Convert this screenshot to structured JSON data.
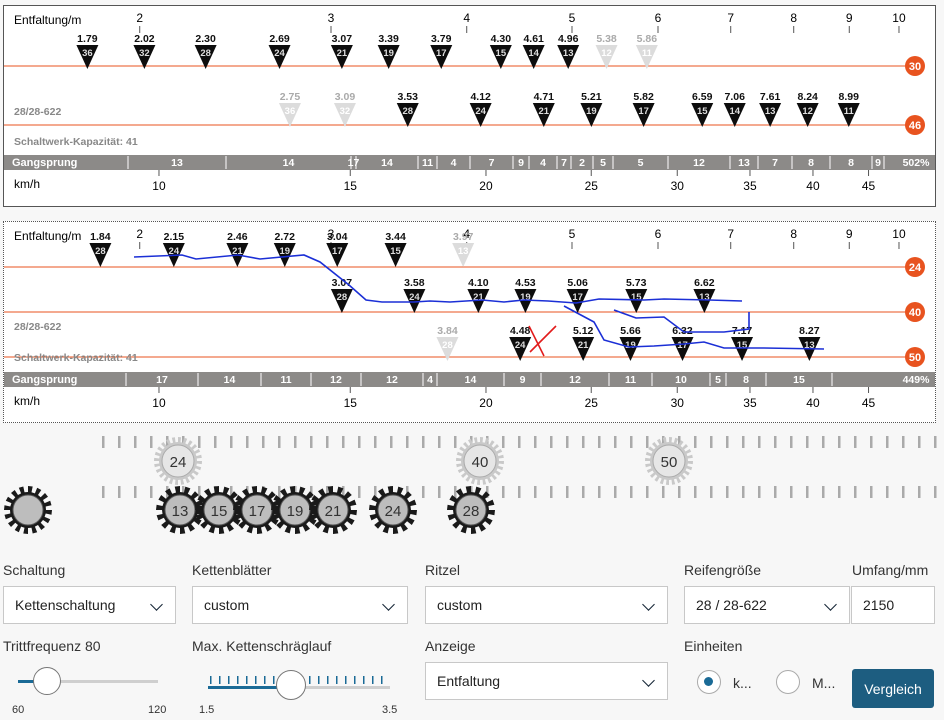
{
  "chart_data": [
    {
      "type": "table",
      "axis_top_label": "Entfaltung/m",
      "axis_top_ticks": [
        "2",
        "3",
        "4",
        "5",
        "6",
        "7",
        "8",
        "9",
        "10"
      ],
      "axis_bottom_label": "km/h",
      "axis_bottom_ticks": [
        "10",
        "15",
        "20",
        "25",
        "30",
        "35",
        "40",
        "45"
      ],
      "tyre_label": "28/28-622",
      "capacity_label": "Schaltwerk-Kapazität: 41",
      "chainrings": [
        {
          "teeth": "30",
          "gears": [
            {
              "value": "1.79",
              "cog": "36",
              "dim": false,
              "x": 1.79
            },
            {
              "value": "2.02",
              "cog": "32",
              "dim": false,
              "x": 2.02
            },
            {
              "value": "2.30",
              "cog": "28",
              "dim": false,
              "x": 2.3
            },
            {
              "value": "2.69",
              "cog": "24",
              "dim": false,
              "x": 2.69
            },
            {
              "value": "3.07",
              "cog": "21",
              "dim": false,
              "x": 3.07
            },
            {
              "value": "3.39",
              "cog": "19",
              "dim": false,
              "x": 3.39
            },
            {
              "value": "3.79",
              "cog": "17",
              "dim": false,
              "x": 3.79
            },
            {
              "value": "4.30",
              "cog": "15",
              "dim": false,
              "x": 4.3
            },
            {
              "value": "4.61",
              "cog": "14",
              "dim": false,
              "x": 4.61
            },
            {
              "value": "4.96",
              "cog": "13",
              "dim": false,
              "x": 4.96
            },
            {
              "value": "5.38",
              "cog": "12",
              "dim": true,
              "x": 5.38
            },
            {
              "value": "5.86",
              "cog": "11",
              "dim": true,
              "x": 5.86
            }
          ]
        },
        {
          "teeth": "46",
          "gears": [
            {
              "value": "2.75",
              "cog": "36",
              "dim": true,
              "x": 2.75
            },
            {
              "value": "3.09",
              "cog": "32",
              "dim": true,
              "x": 3.09
            },
            {
              "value": "3.53",
              "cog": "28",
              "dim": false,
              "x": 3.53
            },
            {
              "value": "4.12",
              "cog": "24",
              "dim": false,
              "x": 4.12
            },
            {
              "value": "4.71",
              "cog": "21",
              "dim": false,
              "x": 4.71
            },
            {
              "value": "5.21",
              "cog": "19",
              "dim": false,
              "x": 5.21
            },
            {
              "value": "5.82",
              "cog": "17",
              "dim": false,
              "x": 5.82
            },
            {
              "value": "6.59",
              "cog": "15",
              "dim": false,
              "x": 6.59
            },
            {
              "value": "7.06",
              "cog": "14",
              "dim": false,
              "x": 7.06
            },
            {
              "value": "7.61",
              "cog": "13",
              "dim": false,
              "x": 7.61
            },
            {
              "value": "8.24",
              "cog": "12",
              "dim": false,
              "x": 8.24
            },
            {
              "value": "8.99",
              "cog": "11",
              "dim": false,
              "x": 8.99
            }
          ]
        }
      ],
      "jumps_label": "Gangsprung",
      "jumps": [
        "13",
        "14",
        "17",
        "14",
        "11",
        "4",
        "7",
        "9",
        "4",
        "7",
        "2",
        "5",
        "5",
        "12",
        "13",
        "7",
        "8",
        "8",
        "9"
      ],
      "jumps_total": "502%"
    },
    {
      "type": "table",
      "axis_top_label": "Entfaltung/m",
      "axis_top_ticks": [
        "2",
        "3",
        "4",
        "5",
        "6",
        "7",
        "8",
        "9",
        "10"
      ],
      "axis_bottom_label": "km/h",
      "axis_bottom_ticks": [
        "10",
        "15",
        "20",
        "25",
        "30",
        "35",
        "40",
        "45"
      ],
      "tyre_label": "28/28-622",
      "capacity_label": "Schaltwerk-Kapazität: 41",
      "chainrings": [
        {
          "teeth": "24",
          "gears": [
            {
              "value": "1.84",
              "cog": "28",
              "dim": false,
              "x": 1.84
            },
            {
              "value": "2.15",
              "cog": "24",
              "dim": false,
              "x": 2.15
            },
            {
              "value": "2.46",
              "cog": "21",
              "dim": false,
              "x": 2.46
            },
            {
              "value": "2.72",
              "cog": "19",
              "dim": false,
              "x": 2.72
            },
            {
              "value": "3.04",
              "cog": "17",
              "dim": false,
              "x": 3.04
            },
            {
              "value": "3.44",
              "cog": "15",
              "dim": false,
              "x": 3.44
            },
            {
              "value": "3.97",
              "cog": "13",
              "dim": true,
              "x": 3.97
            }
          ]
        },
        {
          "teeth": "40",
          "gears": [
            {
              "value": "3.07",
              "cog": "28",
              "dim": false,
              "x": 3.07
            },
            {
              "value": "3.58",
              "cog": "24",
              "dim": false,
              "x": 3.58
            },
            {
              "value": "4.10",
              "cog": "21",
              "dim": false,
              "x": 4.1
            },
            {
              "value": "4.53",
              "cog": "19",
              "dim": false,
              "x": 4.53
            },
            {
              "value": "5.06",
              "cog": "17",
              "dim": false,
              "x": 5.06
            },
            {
              "value": "5.73",
              "cog": "15",
              "dim": false,
              "x": 5.73
            },
            {
              "value": "6.62",
              "cog": "13",
              "dim": false,
              "x": 6.62
            }
          ]
        },
        {
          "teeth": "50",
          "gears": [
            {
              "value": "3.84",
              "cog": "28",
              "dim": true,
              "x": 3.84
            },
            {
              "value": "4.48",
              "cog": "24",
              "dim": false,
              "x": 4.48
            },
            {
              "value": "5.12",
              "cog": "21",
              "dim": false,
              "x": 5.12
            },
            {
              "value": "5.66",
              "cog": "19",
              "dim": false,
              "x": 5.66
            },
            {
              "value": "6.32",
              "cog": "17",
              "dim": false,
              "x": 6.32
            },
            {
              "value": "7.17",
              "cog": "15",
              "dim": false,
              "x": 7.17
            },
            {
              "value": "8.27",
              "cog": "13",
              "dim": false,
              "x": 8.27
            }
          ]
        }
      ],
      "jumps_label": "Gangsprung",
      "jumps": [
        "17",
        "14",
        "11",
        "12",
        "12",
        "4",
        "14",
        "9",
        "12",
        "11",
        "10",
        "5",
        "8",
        "15"
      ],
      "jumps_total": "449%"
    }
  ],
  "chainring_icons": [
    "24",
    "40",
    "50"
  ],
  "cog_icons": [
    "13",
    "15",
    "17",
    "19",
    "21",
    "24",
    "28"
  ],
  "controls": {
    "schaltung": {
      "label": "Schaltung",
      "value": "Kettenschaltung"
    },
    "kettenblaetter": {
      "label": "Kettenblätter",
      "value": "custom"
    },
    "ritzel": {
      "label": "Ritzel",
      "value": "custom"
    },
    "reifen": {
      "label": "Reifengröße",
      "value": "28 / 28-622"
    },
    "umfang": {
      "label": "Umfang/mm",
      "value": "2150"
    },
    "trittfrequenz": {
      "label": "Trittfrequenz 80",
      "min": "60",
      "max": "120",
      "value": 80
    },
    "schraeglauf": {
      "label": "Max. Kettenschräglauf",
      "min": "1.5",
      "max": "3.5",
      "value": 2.5
    },
    "anzeige": {
      "label": "Anzeige",
      "value": "Entfaltung"
    },
    "einheiten": {
      "label": "Einheiten",
      "option_km": "k...",
      "option_m": "M..."
    },
    "compare": "Vergleich"
  },
  "colors": {
    "accent": "#1a6a96",
    "ring": "#e8531f",
    "grey_bar": "#8c8a88",
    "blue_line": "#1b2fd6",
    "red_mark": "#e21b1b"
  }
}
